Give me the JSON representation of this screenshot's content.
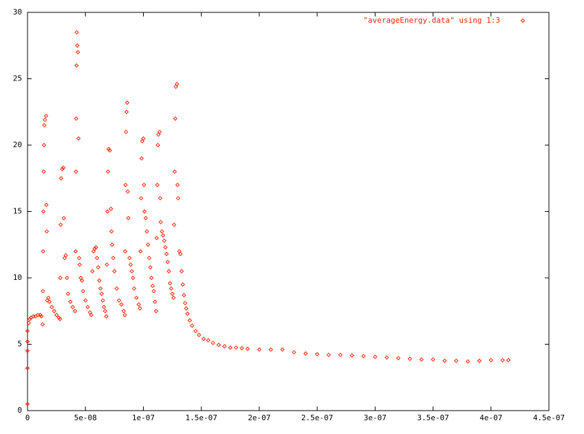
{
  "chart_data": {
    "type": "scatter",
    "xlim": [
      0,
      4.5e-07
    ],
    "ylim": [
      0,
      30
    ],
    "xticks": [
      0,
      {
        "value": 5e-08,
        "label": "5e-08"
      },
      {
        "value": 1e-07,
        "label": "1e-07"
      },
      {
        "value": 1.5e-07,
        "label": "1.5e-07"
      },
      {
        "value": 2e-07,
        "label": "2e-07"
      },
      {
        "value": 2.5e-07,
        "label": "2.5e-07"
      },
      {
        "value": 3e-07,
        "label": "3e-07"
      },
      {
        "value": 3.5e-07,
        "label": "3.5e-07"
      },
      {
        "value": 4e-07,
        "label": "4e-07"
      },
      {
        "value": 4.5e-07,
        "label": "4.5e-07"
      }
    ],
    "yticks": [
      0,
      5,
      10,
      15,
      20,
      25,
      30
    ],
    "legend": "top-right",
    "series": [
      {
        "name": "\"averageEnergy.data\" using 1:3",
        "color": "#ff2000",
        "x": [
          0,
          0,
          0,
          0,
          0,
          1e-09,
          2e-09,
          3e-09,
          5e-09,
          7e-09,
          9e-09,
          1.1e-08,
          1.2e-08,
          1.3e-08,
          1.33e-08,
          1.35e-08,
          1.37e-08,
          1.4e-08,
          1.42e-08,
          1.45e-08,
          1.5e-08,
          1.6e-08,
          1.63e-08,
          1.66e-08,
          1.7e-08,
          1.8e-08,
          1.9e-08,
          2.1e-08,
          2.3e-08,
          2.5e-08,
          2.7e-08,
          2.8e-08,
          2.83e-08,
          2.86e-08,
          2.9e-08,
          3e-08,
          3.1e-08,
          3.13e-08,
          3.2e-08,
          3.3e-08,
          3.4e-08,
          3.5e-08,
          3.7e-08,
          3.9e-08,
          4.1e-08,
          4.15e-08,
          4.18e-08,
          4.2e-08,
          4.23e-08,
          4.25e-08,
          4.3e-08,
          4.35e-08,
          4.4e-08,
          4.45e-08,
          4.5e-08,
          4.6e-08,
          4.7e-08,
          4.8e-08,
          5e-08,
          5.2e-08,
          5.4e-08,
          5.5e-08,
          5.6e-08,
          5.7e-08,
          5.8e-08,
          5.9e-08,
          6e-08,
          6.1e-08,
          6.2e-08,
          6.3e-08,
          6.4e-08,
          6.5e-08,
          6.6e-08,
          6.7e-08,
          6.8e-08,
          6.85e-08,
          6.9e-08,
          6.95e-08,
          7e-08,
          7.1e-08,
          7.2e-08,
          7.25e-08,
          7.3e-08,
          7.4e-08,
          7.5e-08,
          7.7e-08,
          7.9e-08,
          8.1e-08,
          8.3e-08,
          8.4e-08,
          8.43e-08,
          8.46e-08,
          8.5e-08,
          8.55e-08,
          8.6e-08,
          8.65e-08,
          8.7e-08,
          8.8e-08,
          8.9e-08,
          9e-08,
          9.1e-08,
          9.2e-08,
          9.4e-08,
          9.6e-08,
          9.7e-08,
          9.75e-08,
          9.8e-08,
          9.85e-08,
          9.9e-08,
          1e-07,
          1.005e-07,
          1.01e-07,
          1.02e-07,
          1.03e-07,
          1.04e-07,
          1.05e-07,
          1.06e-07,
          1.07e-07,
          1.08e-07,
          1.09e-07,
          1.1e-07,
          1.11e-07,
          1.115e-07,
          1.12e-07,
          1.125e-07,
          1.13e-07,
          1.14e-07,
          1.145e-07,
          1.15e-07,
          1.16e-07,
          1.17e-07,
          1.18e-07,
          1.19e-07,
          1.2e-07,
          1.21e-07,
          1.22e-07,
          1.23e-07,
          1.24e-07,
          1.25e-07,
          1.26e-07,
          1.265e-07,
          1.27e-07,
          1.275e-07,
          1.28e-07,
          1.29e-07,
          1.295e-07,
          1.3e-07,
          1.31e-07,
          1.32e-07,
          1.33e-07,
          1.34e-07,
          1.35e-07,
          1.36e-07,
          1.37e-07,
          1.38e-07,
          1.4e-07,
          1.42e-07,
          1.45e-07,
          1.48e-07,
          1.52e-07,
          1.56e-07,
          1.6e-07,
          1.65e-07,
          1.7e-07,
          1.75e-07,
          1.8e-07,
          1.85e-07,
          1.9e-07,
          2e-07,
          2.1e-07,
          2.2e-07,
          2.3e-07,
          2.4e-07,
          2.5e-07,
          2.6e-07,
          2.7e-07,
          2.8e-07,
          2.9e-07,
          3e-07,
          3.1e-07,
          3.2e-07,
          3.3e-07,
          3.4e-07,
          3.5e-07,
          3.6e-07,
          3.7e-07,
          3.8e-07,
          3.9e-07,
          4e-07,
          4.1e-07,
          4.15e-07
        ],
        "values": [
          0.5,
          3.2,
          4.5,
          5.2,
          6.0,
          6.6,
          6.9,
          7.0,
          7.1,
          7.1,
          7.2,
          7.2,
          7.1,
          6.5,
          9,
          12,
          15,
          18,
          20,
          21.5,
          21.9,
          22.2,
          15.5,
          13.5,
          8.3,
          8.5,
          8.2,
          7.8,
          7.5,
          7.2,
          7.0,
          6.9,
          10,
          14,
          17.5,
          18.2,
          18.3,
          14.5,
          11.5,
          11.7,
          10,
          8.8,
          8.2,
          7.8,
          7.5,
          12,
          18,
          22,
          26,
          28.5,
          27.5,
          27,
          20.5,
          11.5,
          11,
          10,
          9.8,
          9,
          8.3,
          7.8,
          7.4,
          7.2,
          10.5,
          12,
          12.2,
          12.3,
          11.5,
          10.8,
          9.8,
          9.2,
          8.8,
          8.3,
          7.8,
          7.5,
          7.1,
          11,
          15,
          18,
          19.7,
          19.6,
          15.2,
          13.5,
          12.5,
          11.5,
          10.5,
          9.2,
          8.3,
          8,
          7.5,
          7.2,
          12,
          17,
          21,
          22.5,
          23.2,
          16.5,
          14.5,
          11.5,
          11,
          10.5,
          10,
          9.2,
          8.5,
          8,
          7.7,
          12,
          16,
          19,
          20.3,
          20.5,
          17,
          15,
          14.5,
          13.5,
          12.5,
          11.5,
          10.8,
          10,
          9.4,
          9,
          8.2,
          7.5,
          13,
          17,
          20,
          20.8,
          21,
          16,
          14.2,
          13.5,
          13.2,
          12.8,
          12.3,
          11.8,
          11.2,
          10.5,
          9.6,
          9.2,
          8.8,
          8.5,
          14,
          18,
          22,
          24.4,
          24.6,
          17,
          16,
          12,
          11.8,
          10.5,
          9.5,
          8.7,
          8.1,
          7.7,
          7.3,
          6.8,
          6.4,
          6.0,
          5.7,
          5.4,
          5.3,
          5.1,
          4.95,
          4.85,
          4.75,
          4.75,
          4.7,
          4.65,
          4.6,
          4.6,
          4.6,
          4.4,
          4.3,
          4.25,
          4.2,
          4.2,
          4.15,
          4.1,
          4.05,
          4.0,
          3.95,
          3.9,
          3.85,
          3.85,
          3.75,
          3.75,
          3.7,
          3.75,
          3.8,
          3.8,
          3.8
        ]
      }
    ]
  }
}
